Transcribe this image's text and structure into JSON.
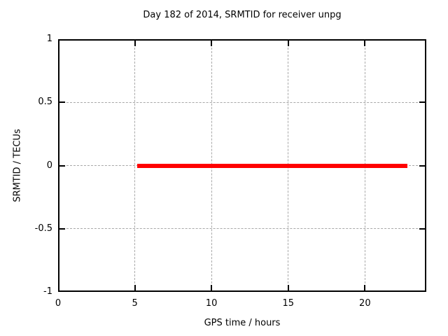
{
  "background_color": "#ffffff",
  "chart_data": {
    "type": "line",
    "title": "Day 182 of 2014, SRMTID for receiver unpg",
    "xlabel": "GPS time / hours",
    "ylabel": "SRMTID / TECUs",
    "xlim": [
      0,
      24
    ],
    "ylim": [
      -1,
      1
    ],
    "xticks": [
      0,
      5,
      10,
      15,
      20
    ],
    "xtick_labels": [
      "0",
      "5",
      "10",
      "15",
      "20"
    ],
    "yticks": [
      -1,
      -0.5,
      0,
      0.5,
      1
    ],
    "ytick_labels": [
      "-1",
      "-0.5",
      "0",
      "0.5",
      "1"
    ],
    "grid": true,
    "grid_color": "#a8a8a8",
    "border_color": "#000000",
    "legend": "none",
    "series": [
      {
        "name": "SRMTID",
        "color": "#ff0000",
        "linewidth": 6,
        "x": [
          5.15,
          22.78
        ],
        "y": [
          0,
          0
        ]
      }
    ]
  }
}
